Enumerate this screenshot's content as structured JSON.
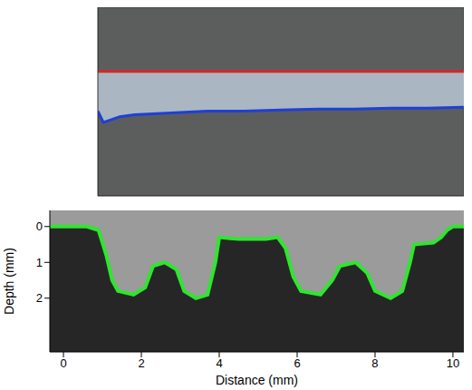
{
  "chart_data": [
    {
      "type": "line",
      "tick_labels": false,
      "x": [
        0,
        0.15,
        0.3,
        0.6,
        1,
        2,
        3,
        4,
        5,
        6,
        7,
        8,
        9,
        10
      ],
      "series": [
        {
          "color": "#d62728",
          "values": [
            3.4,
            3.4,
            3.4,
            3.4,
            3.4,
            3.4,
            3.4,
            3.4,
            3.4,
            3.4,
            3.4,
            3.4,
            3.4,
            3.4
          ]
        },
        {
          "color": "#1f3fd8",
          "values": [
            5.5,
            6.1,
            6.0,
            5.8,
            5.7,
            5.6,
            5.5,
            5.5,
            5.45,
            5.4,
            5.4,
            5.35,
            5.35,
            5.3
          ]
        }
      ],
      "xlim": [
        0,
        10
      ],
      "ylim": [
        0,
        10
      ]
    },
    {
      "type": "line",
      "x_label": "Distance (mm)",
      "y_label": "Depth (mm)",
      "x": [
        -0.35,
        0.6,
        0.9,
        1.1,
        1.25,
        1.4,
        1.8,
        2.1,
        2.3,
        2.6,
        2.9,
        3.1,
        3.4,
        3.7,
        3.9,
        4.0,
        4.5,
        5.2,
        5.5,
        5.7,
        5.9,
        6.1,
        6.6,
        6.9,
        7.1,
        7.5,
        7.8,
        8.0,
        8.4,
        8.7,
        8.9,
        9.0,
        9.5,
        9.7,
        9.85,
        10.0,
        10.28
      ],
      "values": [
        0,
        0,
        0.1,
        0.8,
        1.5,
        1.8,
        1.9,
        1.7,
        1.1,
        1.0,
        1.2,
        1.8,
        2.0,
        1.9,
        1.0,
        0.3,
        0.35,
        0.35,
        0.3,
        0.6,
        1.4,
        1.8,
        1.9,
        1.5,
        1.1,
        1.0,
        1.3,
        1.8,
        2.0,
        1.8,
        1.0,
        0.5,
        0.45,
        0.3,
        0.1,
        0,
        0
      ],
      "color": "#2ee62e",
      "xlim": [
        -0.35,
        10.28
      ],
      "ylim": [
        -0.45,
        3.5
      ],
      "xticks": [
        0,
        2,
        4,
        6,
        8,
        10
      ],
      "yticks": [
        0,
        1,
        2
      ]
    }
  ]
}
